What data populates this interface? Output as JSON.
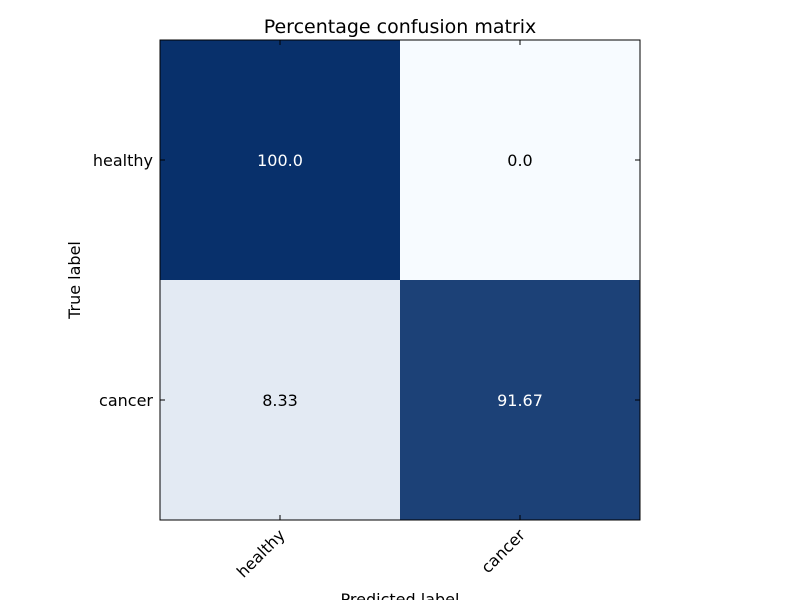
{
  "chart_data": {
    "type": "heatmap",
    "title": "Percentage confusion matrix",
    "xlabel": "Predicted label",
    "ylabel": "True label",
    "x_categories": [
      "healthy",
      "cancer"
    ],
    "y_categories": [
      "healthy",
      "cancer"
    ],
    "values": [
      [
        100.0,
        0.0
      ],
      [
        8.33,
        91.67
      ]
    ],
    "value_labels": [
      [
        "100.0",
        "0.0"
      ],
      [
        "8.33",
        "91.67"
      ]
    ],
    "color_low": "#f7fbff",
    "color_high": "#08306b",
    "vmin": 0,
    "vmax": 100,
    "grid": false
  }
}
